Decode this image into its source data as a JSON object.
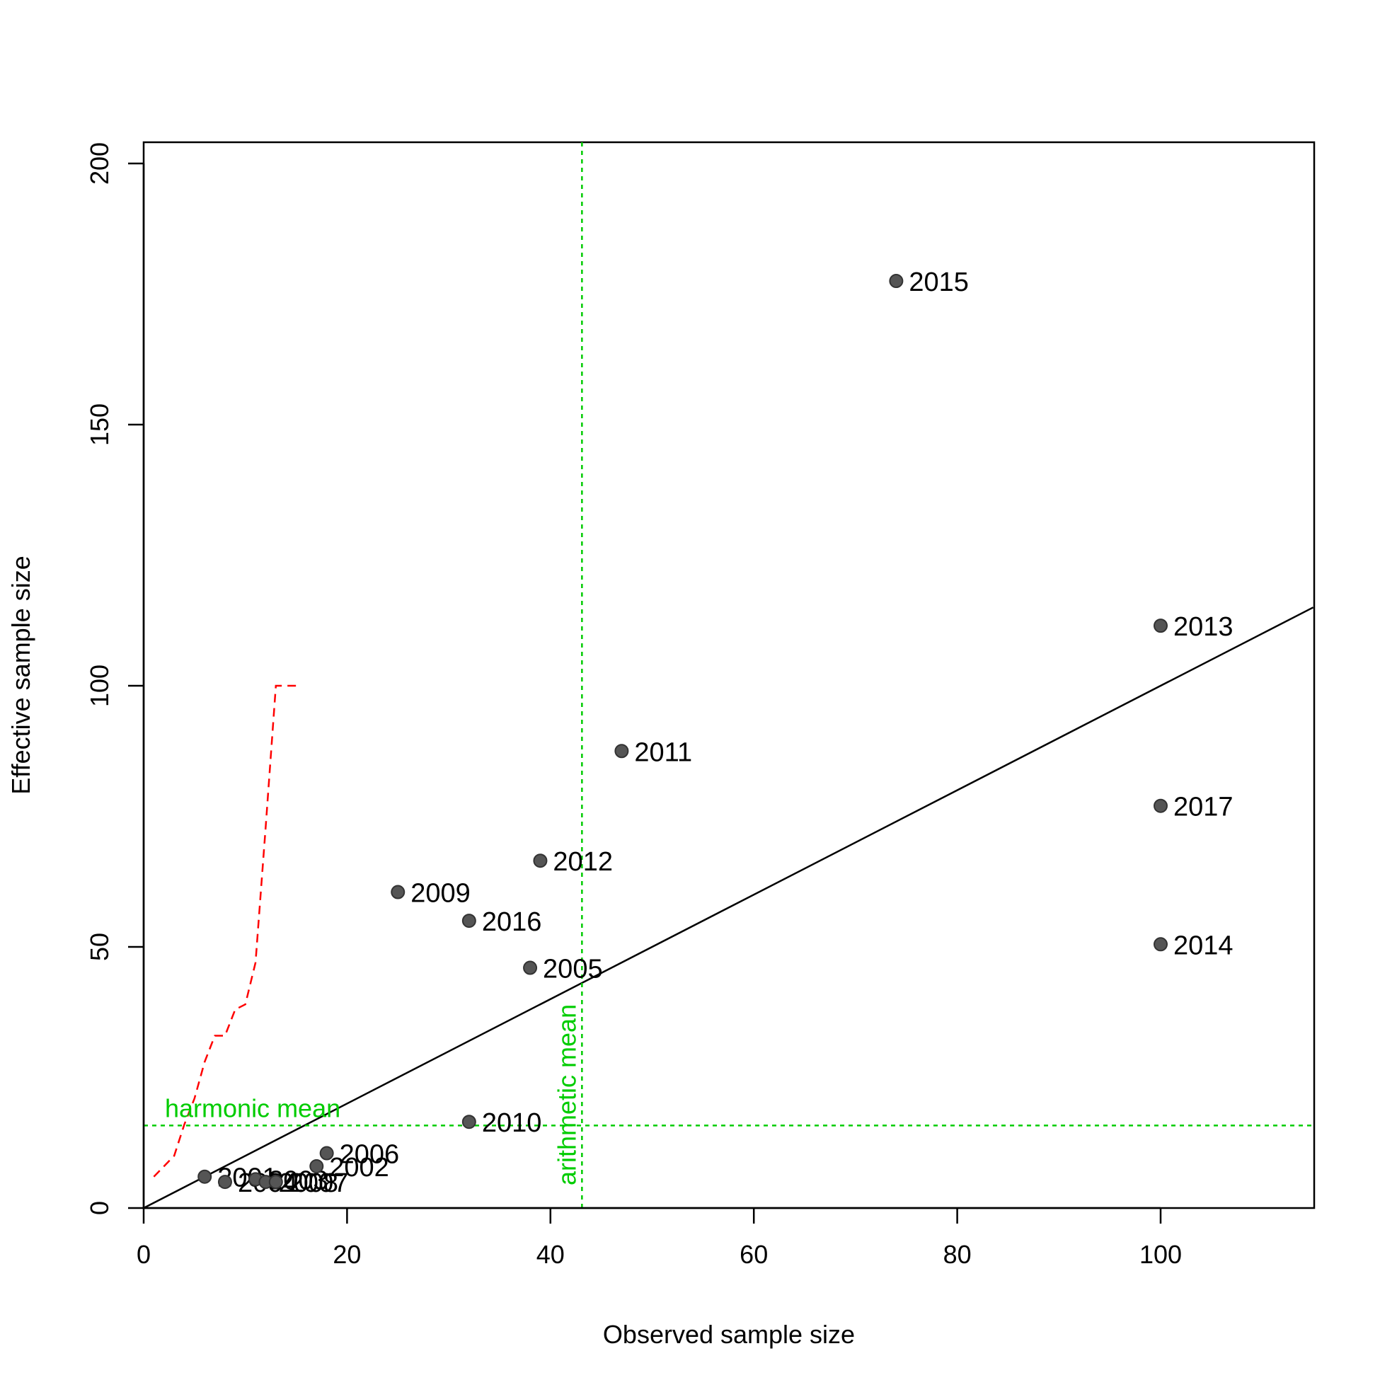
{
  "chart_data": {
    "type": "scatter",
    "title": "",
    "xlabel": "Observed sample size",
    "ylabel": "Effective sample size",
    "xlim": [
      0,
      115
    ],
    "ylim": [
      0,
      200
    ],
    "x_ticks": [
      0,
      20,
      40,
      60,
      80,
      100
    ],
    "y_ticks": [
      0,
      50,
      100,
      150,
      200
    ],
    "grid": false,
    "colors": {
      "points": "#555555",
      "identity_line": "#000000",
      "means": "#00cc00",
      "loess": "#ff0000"
    },
    "points": [
      {
        "label": "2001",
        "x": 6,
        "y": 6
      },
      {
        "label": "2004",
        "x": 8,
        "y": 5
      },
      {
        "label": "2003",
        "x": 11,
        "y": 5.5
      },
      {
        "label": "2008",
        "x": 12,
        "y": 5
      },
      {
        "label": "2007",
        "x": 13,
        "y": 5
      },
      {
        "label": "2002",
        "x": 17,
        "y": 8
      },
      {
        "label": "2006",
        "x": 18,
        "y": 10.5
      },
      {
        "label": "2010",
        "x": 32,
        "y": 16.5
      },
      {
        "label": "2009",
        "x": 25,
        "y": 60.5
      },
      {
        "label": "2016",
        "x": 32,
        "y": 55
      },
      {
        "label": "2005",
        "x": 38,
        "y": 46
      },
      {
        "label": "2012",
        "x": 39,
        "y": 66.5
      },
      {
        "label": "2011",
        "x": 47,
        "y": 87.5
      },
      {
        "label": "2015",
        "x": 74,
        "y": 177.5
      },
      {
        "label": "2013",
        "x": 100,
        "y": 111.5
      },
      {
        "label": "2017",
        "x": 100,
        "y": 77
      },
      {
        "label": "2014",
        "x": 100,
        "y": 50.5
      }
    ],
    "identity_line": {
      "x": [
        0,
        115
      ],
      "y": [
        0,
        115
      ]
    },
    "arithmetic_mean": {
      "label": "arithmetic mean",
      "x": 43.1
    },
    "harmonic_mean": {
      "label": "harmonic mean",
      "y": 15.8
    },
    "loess_line": {
      "x": [
        1,
        2,
        3,
        4,
        5,
        6,
        7,
        8,
        9,
        10,
        11,
        12,
        13,
        14,
        15
      ],
      "y": [
        6,
        8,
        10,
        16,
        21,
        28,
        33,
        33,
        38,
        39,
        47,
        73,
        100,
        100,
        100
      ]
    }
  }
}
